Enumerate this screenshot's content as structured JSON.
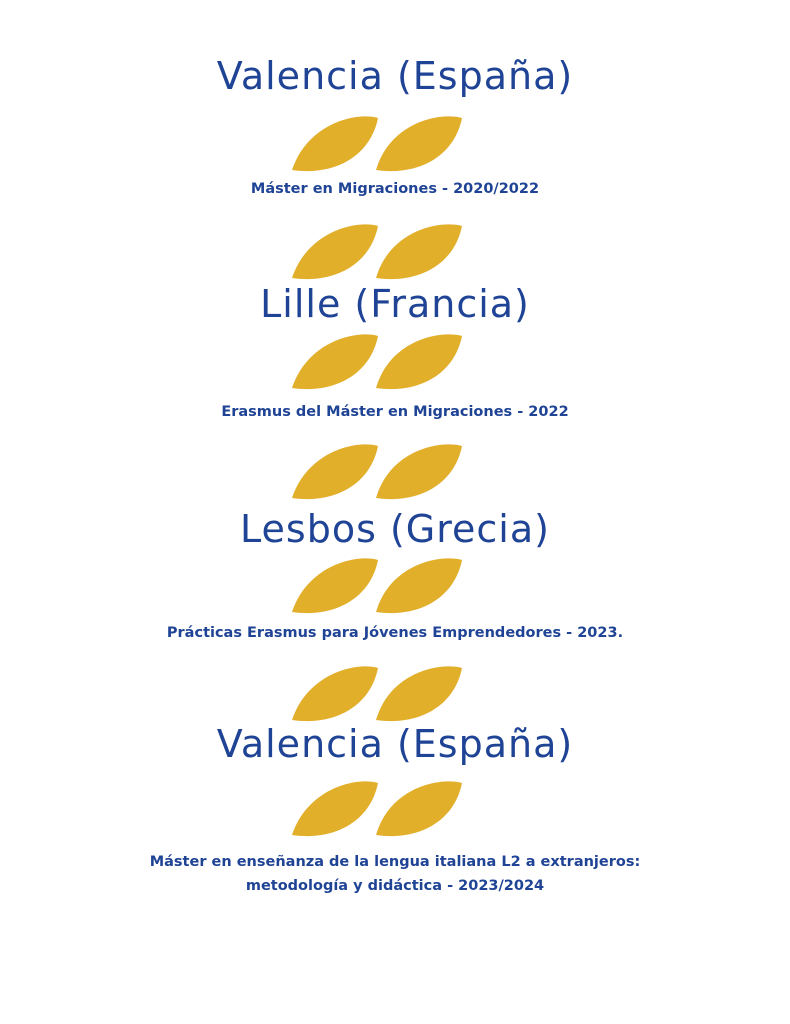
{
  "colors": {
    "text": "#1f4395",
    "leaf": "#e2af2b",
    "background": "#ffffff"
  },
  "ornament_icon": "gold-double-leaf-icon",
  "timeline": [
    {
      "city": "Valencia (España)",
      "detail": [
        "Máster en Migraciones - 2020/2022"
      ]
    },
    {
      "city": "Lille (Francia)",
      "detail": [
        "Erasmus del Máster en Migraciones - 2022"
      ]
    },
    {
      "city": "Lesbos (Grecia)",
      "detail": [
        "Prácticas Erasmus para Jóvenes Emprendedores - 2023."
      ]
    },
    {
      "city": "Valencia (España)",
      "detail": [
        "Máster en enseñanza de la lengua italiana L2 a extranjeros:",
        "metodología y didáctica - 2023/2024"
      ]
    }
  ]
}
